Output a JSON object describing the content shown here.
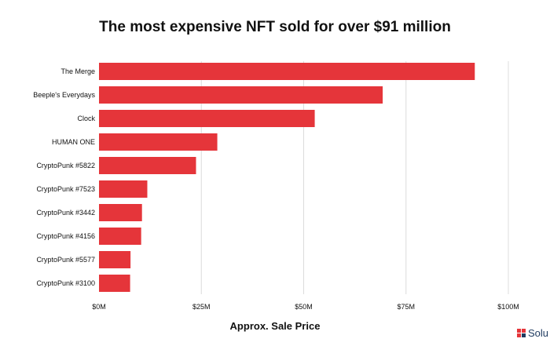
{
  "chart_data": {
    "type": "bar",
    "orientation": "horizontal",
    "title": "The most expensive NFT sold for over $91 million",
    "xlabel": "Approx. Sale Price",
    "ylabel": "",
    "categories": [
      "The Merge",
      "Beeple's Everydays",
      "Clock",
      "HUMAN ONE",
      "CryptoPunk #5822",
      "CryptoPunk #7523",
      "CryptoPunk #3442",
      "CryptoPunk #4156",
      "CryptoPunk #5577",
      "CryptoPunk #3100"
    ],
    "values": [
      91.8,
      69.3,
      52.7,
      28.9,
      23.7,
      11.8,
      10.5,
      10.3,
      7.7,
      7.6
    ],
    "value_unit": "million USD",
    "xlim": [
      0,
      100
    ],
    "xticks": [
      0,
      25,
      50,
      75,
      100
    ],
    "xtick_labels": [
      "$0M",
      "$25M",
      "$50M",
      "$75M",
      "$100M"
    ],
    "grid": "vertical",
    "bar_color": "#e5353a"
  },
  "branding": {
    "text": "Solu",
    "icon": "logo-icon"
  }
}
